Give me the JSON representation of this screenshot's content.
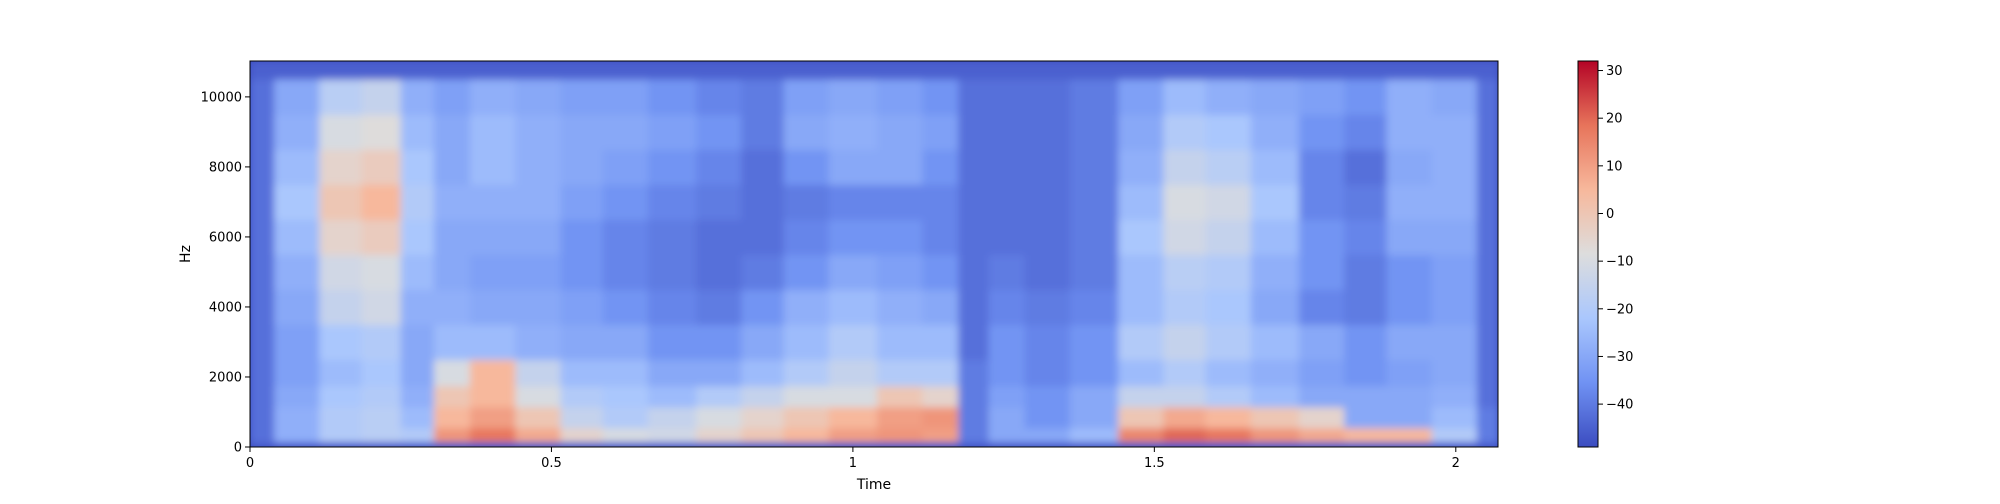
{
  "chart_data": {
    "type": "heatmap",
    "title": "",
    "xlabel": "Time",
    "ylabel": "Hz",
    "xlim": [
      0,
      2.07
    ],
    "ylim": [
      0,
      11025
    ],
    "x_ticks": [
      0,
      0.5,
      1,
      1.5,
      2
    ],
    "x_tick_labels": [
      "0",
      "0.5",
      "1",
      "1.5",
      "2"
    ],
    "y_ticks": [
      0,
      2000,
      4000,
      6000,
      8000,
      10000
    ],
    "y_tick_labels": [
      "0",
      "2000",
      "4000",
      "6000",
      "8000",
      "10000"
    ],
    "colorbar": {
      "range": [
        -49,
        32
      ],
      "ticks": [
        30,
        20,
        10,
        0,
        -10,
        -20,
        -30,
        -40
      ],
      "tick_labels": [
        "30",
        "20",
        "10",
        "0",
        "−10",
        "−20",
        "−30",
        "−40"
      ],
      "colormap": "coolwarm",
      "colors": [
        "#3b4cc0",
        "#7092f3",
        "#aac7fd",
        "#dddddd",
        "#f7b89c",
        "#e7745b",
        "#b40426"
      ]
    },
    "grid": false,
    "time_frames": [
      0,
      0.08,
      0.15,
      0.22,
      0.28,
      0.33,
      0.4,
      0.48,
      0.55,
      0.62,
      0.7,
      0.78,
      0.85,
      0.92,
      1.0,
      1.08,
      1.15,
      1.2,
      1.25,
      1.32,
      1.4,
      1.48,
      1.55,
      1.62,
      1.7,
      1.78,
      1.85,
      1.92,
      2.0,
      2.07
    ],
    "freq_bins_hz": [
      0,
      300,
      800,
      1500,
      2000,
      3000,
      4000,
      5000,
      6000,
      7000,
      8000,
      9000,
      10000,
      11025
    ],
    "values_db": [
      [
        -45,
        -45,
        -45,
        -45,
        -45,
        -45,
        -45,
        -45,
        -45,
        -45,
        -45,
        -45,
        -45,
        -45,
        -45,
        -45,
        -45,
        -45,
        -45,
        -45,
        -45,
        -45,
        -45,
        -45,
        -45,
        -45,
        -45,
        -45,
        -45,
        -45
      ],
      [
        -42,
        -28,
        -20,
        -18,
        -20,
        12,
        18,
        8,
        -5,
        -10,
        -12,
        -5,
        0,
        5,
        10,
        12,
        10,
        -40,
        -30,
        -30,
        -25,
        15,
        20,
        18,
        12,
        8,
        5,
        5,
        -20,
        -40
      ],
      [
        -42,
        -28,
        -20,
        -18,
        -25,
        5,
        10,
        0,
        -15,
        -20,
        -15,
        -10,
        -5,
        0,
        5,
        10,
        12,
        -40,
        -30,
        -35,
        -30,
        0,
        8,
        5,
        0,
        -5,
        -30,
        -30,
        -25,
        -40
      ],
      [
        -42,
        -30,
        -22,
        -20,
        -28,
        0,
        5,
        -10,
        -20,
        -22,
        -25,
        -20,
        -15,
        -10,
        -10,
        0,
        -5,
        -40,
        -32,
        -35,
        -30,
        -15,
        -15,
        -20,
        -25,
        -30,
        -30,
        -30,
        -28,
        -42
      ],
      [
        -42,
        -32,
        -25,
        -22,
        -30,
        -10,
        5,
        -15,
        -25,
        -25,
        -30,
        -30,
        -25,
        -20,
        -15,
        -20,
        -20,
        -40,
        -35,
        -38,
        -35,
        -25,
        -20,
        -25,
        -28,
        -32,
        -35,
        -32,
        -30,
        -42
      ],
      [
        -42,
        -32,
        -22,
        -20,
        -30,
        -25,
        -25,
        -28,
        -30,
        -30,
        -35,
        -35,
        -30,
        -25,
        -20,
        -25,
        -25,
        -42,
        -35,
        -38,
        -35,
        -20,
        -15,
        -20,
        -25,
        -30,
        -35,
        -30,
        -30,
        -42
      ],
      [
        -42,
        -30,
        -15,
        -12,
        -28,
        -28,
        -30,
        -30,
        -32,
        -35,
        -38,
        -40,
        -35,
        -28,
        -25,
        -28,
        -30,
        -42,
        -38,
        -40,
        -38,
        -25,
        -20,
        -22,
        -30,
        -38,
        -40,
        -35,
        -32,
        -42
      ],
      [
        -42,
        -28,
        -12,
        -10,
        -25,
        -30,
        -32,
        -32,
        -35,
        -38,
        -40,
        -42,
        -40,
        -35,
        -30,
        -32,
        -35,
        -42,
        -40,
        -42,
        -40,
        -25,
        -18,
        -20,
        -28,
        -35,
        -40,
        -35,
        -32,
        -42
      ],
      [
        -42,
        -25,
        -5,
        -2,
        -22,
        -30,
        -30,
        -30,
        -35,
        -38,
        -40,
        -42,
        -42,
        -38,
        -35,
        -35,
        -38,
        -42,
        -42,
        -42,
        -40,
        -22,
        -12,
        -15,
        -25,
        -35,
        -38,
        -30,
        -30,
        -42
      ],
      [
        -42,
        -22,
        0,
        5,
        -20,
        -28,
        -28,
        -28,
        -32,
        -35,
        -38,
        -40,
        -42,
        -40,
        -38,
        -38,
        -38,
        -42,
        -42,
        -42,
        -40,
        -25,
        -10,
        -12,
        -22,
        -38,
        -40,
        -28,
        -28,
        -42
      ],
      [
        -42,
        -25,
        -5,
        -2,
        -22,
        -30,
        -25,
        -28,
        -30,
        -32,
        -35,
        -38,
        -42,
        -35,
        -30,
        -30,
        -35,
        -42,
        -42,
        -42,
        -40,
        -28,
        -15,
        -18,
        -25,
        -38,
        -42,
        -30,
        -28,
        -42
      ],
      [
        -42,
        -28,
        -10,
        -8,
        -25,
        -30,
        -25,
        -28,
        -30,
        -30,
        -32,
        -35,
        -40,
        -30,
        -28,
        -30,
        -32,
        -42,
        -42,
        -42,
        -40,
        -30,
        -20,
        -22,
        -28,
        -35,
        -38,
        -28,
        -28,
        -42
      ],
      [
        -42,
        -30,
        -18,
        -15,
        -28,
        -32,
        -28,
        -30,
        -32,
        -32,
        -35,
        -38,
        -40,
        -32,
        -30,
        -32,
        -35,
        -42,
        -42,
        -42,
        -40,
        -32,
        -25,
        -28,
        -30,
        -32,
        -35,
        -28,
        -30,
        -42
      ],
      [
        -45,
        -45,
        -45,
        -45,
        -45,
        -45,
        -45,
        -45,
        -45,
        -45,
        -45,
        -45,
        -45,
        -45,
        -45,
        -45,
        -45,
        -45,
        -45,
        -45,
        -45,
        -45,
        -45,
        -45,
        -45,
        -45,
        -45,
        -45,
        -45,
        -45
      ]
    ]
  }
}
